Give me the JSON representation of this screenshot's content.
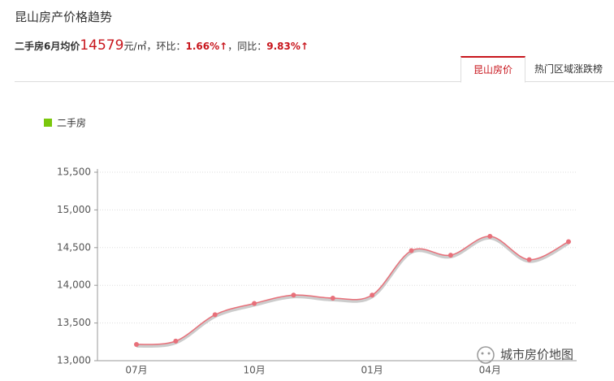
{
  "header": {
    "title": "昆山房产价格趋势",
    "summary": {
      "label": "二手房6月均价",
      "price": "14579",
      "unit": "元/㎡",
      "mom_label": "，环比：",
      "mom": "1.66%↑",
      "yoy_label": "，同比：",
      "yoy": "9.83%↑"
    }
  },
  "tabs": [
    "昆山房价",
    "热门区域涨跌榜"
  ],
  "watermark": "城市房价地图",
  "chart_data": {
    "type": "line",
    "categories": [
      "07月",
      null,
      null,
      "10月",
      null,
      null,
      "01月",
      null,
      null,
      "04月",
      null,
      null
    ],
    "series": [
      {
        "name": "二手房",
        "color": "#e8707a",
        "legend_color": "#7ac70c",
        "values": [
          13215,
          13260,
          13610,
          13760,
          13870,
          13830,
          13870,
          14460,
          14400,
          14650,
          14340,
          14579
        ]
      }
    ],
    "ylim": [
      13000,
      15500
    ],
    "yticks": [
      {
        "value": 13000,
        "label": "13,000"
      },
      {
        "value": 13500,
        "label": "13,500"
      },
      {
        "value": 14000,
        "label": "14,000"
      },
      {
        "value": 14500,
        "label": "14,500"
      },
      {
        "value": 15000,
        "label": "15,000"
      },
      {
        "value": 15500,
        "label": "15,500"
      }
    ],
    "grid": true
  }
}
